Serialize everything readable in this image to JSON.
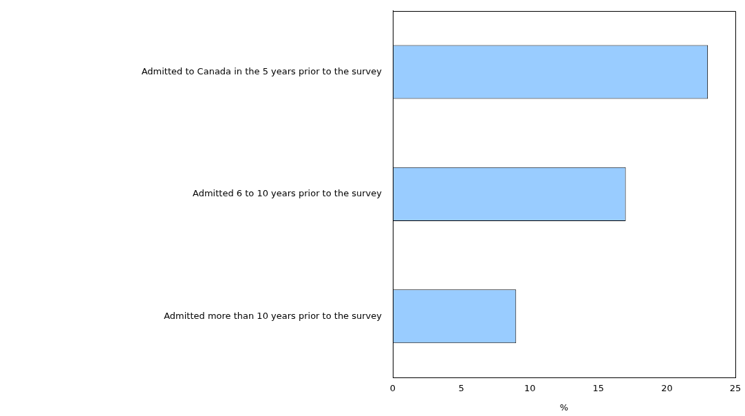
{
  "chart_data": {
    "type": "bar",
    "orientation": "horizontal",
    "xlabel": "%",
    "categories": [
      "Admitted to Canada in the 5 years prior to the survey",
      "Admitted 6 to 10 years prior to the survey",
      "Admitted more than 10 years prior to the survey"
    ],
    "values": [
      23,
      17,
      9
    ],
    "color": "#99ccff",
    "xlim": [
      0,
      25
    ],
    "xticks": [
      0,
      5,
      10,
      15,
      20,
      25
    ]
  }
}
